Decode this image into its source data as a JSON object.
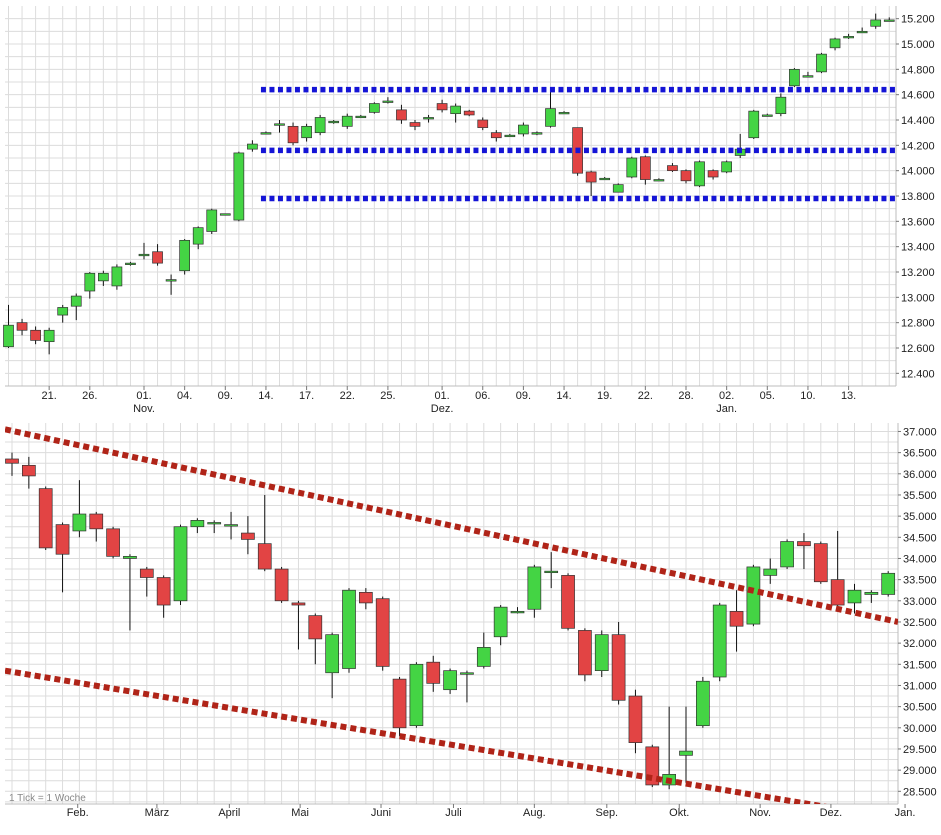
{
  "chart_data": [
    {
      "type": "candlestick",
      "y_min": 12300,
      "y_max": 15300,
      "y_ticks": [
        "12.400",
        "12.600",
        "12.800",
        "13.000",
        "13.200",
        "13.400",
        "13.600",
        "13.800",
        "14.000",
        "14.200",
        "14.400",
        "14.600",
        "14.800",
        "15.000",
        "15.200"
      ],
      "x_ticks": [
        {
          "i": 3,
          "label": "21.",
          "sub": ""
        },
        {
          "i": 6,
          "label": "26.",
          "sub": ""
        },
        {
          "i": 10,
          "label": "01.",
          "sub": "Nov."
        },
        {
          "i": 13,
          "label": "04.",
          "sub": ""
        },
        {
          "i": 16,
          "label": "09.",
          "sub": ""
        },
        {
          "i": 19,
          "label": "14.",
          "sub": ""
        },
        {
          "i": 22,
          "label": "17.",
          "sub": ""
        },
        {
          "i": 25,
          "label": "22.",
          "sub": ""
        },
        {
          "i": 28,
          "label": "25.",
          "sub": ""
        },
        {
          "i": 32,
          "label": "01.",
          "sub": "Dez."
        },
        {
          "i": 35,
          "label": "06.",
          "sub": ""
        },
        {
          "i": 38,
          "label": "09.",
          "sub": ""
        },
        {
          "i": 41,
          "label": "14.",
          "sub": ""
        },
        {
          "i": 44,
          "label": "19.",
          "sub": ""
        },
        {
          "i": 47,
          "label": "22.",
          "sub": ""
        },
        {
          "i": 50,
          "label": "28.",
          "sub": ""
        },
        {
          "i": 53,
          "label": "02.",
          "sub": "Jan."
        },
        {
          "i": 56,
          "label": "05.",
          "sub": ""
        },
        {
          "i": 59,
          "label": "10.",
          "sub": ""
        },
        {
          "i": 62,
          "label": "13.",
          "sub": ""
        }
      ],
      "candles": [
        [
          12610,
          12780,
          12600,
          12940
        ],
        [
          12800,
          12740,
          12700,
          12830
        ],
        [
          12740,
          12660,
          12630,
          12770
        ],
        [
          12650,
          12740,
          12550,
          12760
        ],
        [
          12860,
          12920,
          12800,
          12940
        ],
        [
          12930,
          13010,
          12820,
          13030
        ],
        [
          13050,
          13190,
          12990,
          13200
        ],
        [
          13130,
          13190,
          13090,
          13210
        ],
        [
          13090,
          13240,
          13060,
          13260
        ],
        [
          13270,
          13270,
          13250,
          13280
        ],
        [
          13340,
          13340,
          13300,
          13430
        ],
        [
          13360,
          13270,
          13250,
          13420
        ],
        [
          13140,
          13140,
          13020,
          13180
        ],
        [
          13210,
          13450,
          13180,
          13460
        ],
        [
          13420,
          13550,
          13380,
          13560
        ],
        [
          13520,
          13690,
          13500,
          13700
        ],
        [
          13660,
          13660,
          13650,
          13660
        ],
        [
          13610,
          14140,
          13600,
          14150
        ],
        [
          14170,
          14210,
          14150,
          14240
        ],
        [
          14300,
          14300,
          14290,
          14310
        ],
        [
          14370,
          14370,
          14300,
          14400
        ],
        [
          14350,
          14220,
          14200,
          14380
        ],
        [
          14260,
          14350,
          14230,
          14370
        ],
        [
          14300,
          14420,
          14280,
          14440
        ],
        [
          14380,
          14390,
          14370,
          14400
        ],
        [
          14350,
          14430,
          14330,
          14450
        ],
        [
          14430,
          14430,
          14420,
          14440
        ],
        [
          14460,
          14530,
          14450,
          14540
        ],
        [
          14550,
          14550,
          14530,
          14580
        ],
        [
          14480,
          14400,
          14370,
          14520
        ],
        [
          14380,
          14350,
          14320,
          14400
        ],
        [
          14410,
          14420,
          14380,
          14440
        ],
        [
          14530,
          14480,
          14460,
          14560
        ],
        [
          14450,
          14510,
          14380,
          14530
        ],
        [
          14470,
          14440,
          14430,
          14480
        ],
        [
          14400,
          14340,
          14320,
          14420
        ],
        [
          14300,
          14260,
          14230,
          14320
        ],
        [
          14280,
          14280,
          14270,
          14290
        ],
        [
          14290,
          14360,
          14270,
          14380
        ],
        [
          14300,
          14300,
          14280,
          14310
        ],
        [
          14350,
          14490,
          14340,
          14640
        ],
        [
          14460,
          14460,
          14450,
          14470
        ],
        [
          14340,
          13980,
          13960,
          14340
        ],
        [
          13990,
          13910,
          13800,
          14000
        ],
        [
          13940,
          13940,
          13930,
          13950
        ],
        [
          13830,
          13890,
          13830,
          13900
        ],
        [
          13950,
          14100,
          13940,
          14110
        ],
        [
          14110,
          13930,
          13890,
          14120
        ],
        [
          13930,
          13930,
          13920,
          13940
        ],
        [
          14040,
          14000,
          13990,
          14060
        ],
        [
          14000,
          13920,
          13900,
          14010
        ],
        [
          13880,
          14070,
          13870,
          14080
        ],
        [
          14000,
          13950,
          13930,
          14010
        ],
        [
          13990,
          14070,
          13980,
          14080
        ],
        [
          14120,
          14170,
          14100,
          14290
        ],
        [
          14260,
          14470,
          14250,
          14480
        ],
        [
          14440,
          14440,
          14430,
          14450
        ],
        [
          14450,
          14580,
          14430,
          14610
        ],
        [
          14670,
          14800,
          14660,
          14810
        ],
        [
          14750,
          14750,
          14740,
          14780
        ],
        [
          14780,
          14920,
          14770,
          14930
        ],
        [
          14970,
          15040,
          14950,
          15050
        ],
        [
          15050,
          15060,
          15040,
          15080
        ],
        [
          15100,
          15100,
          15090,
          15130
        ],
        [
          15140,
          15190,
          15120,
          15240
        ],
        [
          15190,
          15190,
          15180,
          15210
        ]
      ],
      "lines": [
        {
          "kind": "resistance",
          "color": "#1414d6",
          "y1": 14640,
          "y2": 14640,
          "from": 19
        },
        {
          "kind": "support",
          "color": "#1414d6",
          "y1": 14160,
          "y2": 14160,
          "from": 19
        },
        {
          "kind": "support",
          "color": "#1414d6",
          "y1": 13780,
          "y2": 13780,
          "from": 19
        }
      ],
      "colors": {
        "up": "#44d444",
        "down": "#e24444",
        "grid": "#dcdcdc",
        "wick": "#111111"
      }
    },
    {
      "type": "candlestick",
      "y_min": 28200,
      "y_max": 37200,
      "y_ticks": [
        "28.500",
        "29.000",
        "29.500",
        "30.000",
        "30.500",
        "31.000",
        "31.500",
        "32.000",
        "32.500",
        "33.000",
        "33.500",
        "34.000",
        "34.500",
        "35.000",
        "35.500",
        "36.000",
        "36.500",
        "37.000"
      ],
      "x_ticks": [
        {
          "i": 3.9,
          "label": "Feb.",
          "sub": ""
        },
        {
          "i": 8.6,
          "label": "März",
          "sub": ""
        },
        {
          "i": 12.9,
          "label": "April",
          "sub": ""
        },
        {
          "i": 17.1,
          "label": "Mai",
          "sub": ""
        },
        {
          "i": 21.9,
          "label": "Juni",
          "sub": ""
        },
        {
          "i": 26.2,
          "label": "Juli",
          "sub": ""
        },
        {
          "i": 31.0,
          "label": "Aug.",
          "sub": ""
        },
        {
          "i": 35.3,
          "label": "Sep.",
          "sub": ""
        },
        {
          "i": 39.6,
          "label": "Okt.",
          "sub": ""
        },
        {
          "i": 44.4,
          "label": "Nov.",
          "sub": ""
        },
        {
          "i": 48.6,
          "label": "Dez.",
          "sub": ""
        },
        {
          "i": 53.0,
          "label": "Jan.",
          "sub": ""
        }
      ],
      "footnote": "1 Tick = 1 Woche",
      "candles": [
        [
          36350,
          36250,
          35950,
          36500
        ],
        [
          36200,
          35950,
          35650,
          36400
        ],
        [
          35650,
          34250,
          34200,
          35700
        ],
        [
          34800,
          34100,
          33200,
          34850
        ],
        [
          34650,
          35050,
          34500,
          35850
        ],
        [
          35050,
          34700,
          34400,
          35100
        ],
        [
          34700,
          34050,
          34000,
          34750
        ],
        [
          34000,
          34050,
          32300,
          34100
        ],
        [
          33750,
          33550,
          33100,
          33800
        ],
        [
          33550,
          32900,
          32600,
          33600
        ],
        [
          33000,
          34750,
          32900,
          34800
        ],
        [
          34750,
          34900,
          34600,
          34950
        ],
        [
          34850,
          34850,
          34600,
          34900
        ],
        [
          34800,
          34800,
          34450,
          35100
        ],
        [
          34600,
          34450,
          34100,
          35000
        ],
        [
          34350,
          33750,
          33700,
          35500
        ],
        [
          33750,
          33000,
          32950,
          33800
        ],
        [
          32950,
          32900,
          31850,
          33000
        ],
        [
          32650,
          32100,
          31500,
          32700
        ],
        [
          31300,
          32200,
          30700,
          32250
        ],
        [
          31400,
          33250,
          31300,
          33300
        ],
        [
          33200,
          32950,
          32800,
          33300
        ],
        [
          33050,
          31450,
          31350,
          33100
        ],
        [
          31150,
          30000,
          29800,
          31200
        ],
        [
          30050,
          31500,
          30000,
          31550
        ],
        [
          31550,
          31050,
          30850,
          31700
        ],
        [
          30900,
          31350,
          30800,
          31400
        ],
        [
          31300,
          31300,
          30600,
          31350
        ],
        [
          31450,
          31900,
          31400,
          32250
        ],
        [
          32150,
          32850,
          31950,
          32900
        ],
        [
          32750,
          32750,
          32700,
          32850
        ],
        [
          32800,
          33800,
          32600,
          33850
        ],
        [
          33700,
          33700,
          33300,
          34150
        ],
        [
          33600,
          32350,
          32300,
          33650
        ],
        [
          32300,
          31250,
          31100,
          32350
        ],
        [
          31350,
          32200,
          31200,
          32300
        ],
        [
          32200,
          30650,
          30550,
          32500
        ],
        [
          30750,
          29650,
          29400,
          30900
        ],
        [
          29550,
          28650,
          28600,
          29600
        ],
        [
          28650,
          28900,
          28550,
          30500
        ],
        [
          29350,
          29450,
          28700,
          30500
        ],
        [
          30050,
          31100,
          30000,
          31200
        ],
        [
          31200,
          32900,
          31100,
          32950
        ],
        [
          32750,
          32400,
          31800,
          33250
        ],
        [
          32450,
          33800,
          32400,
          33850
        ],
        [
          33600,
          33750,
          33400,
          34000
        ],
        [
          33800,
          34400,
          33750,
          34450
        ],
        [
          34400,
          34300,
          33750,
          34600
        ],
        [
          34350,
          33450,
          33400,
          34400
        ],
        [
          33500,
          32900,
          32850,
          34650
        ],
        [
          32950,
          33250,
          32700,
          33400
        ],
        [
          33150,
          33200,
          32950,
          33250
        ],
        [
          33150,
          33650,
          33100,
          33700
        ]
      ],
      "lines": [
        {
          "kind": "trend",
          "color": "#b02418",
          "y1": 37050,
          "y2": 32500,
          "from": 0
        },
        {
          "kind": "trend",
          "color": "#b02418",
          "y1": 31350,
          "y2": 27850,
          "from": 0
        }
      ],
      "colors": {
        "up": "#44d444",
        "down": "#e24444",
        "grid": "#dcdcdc",
        "wick": "#111111"
      }
    }
  ]
}
